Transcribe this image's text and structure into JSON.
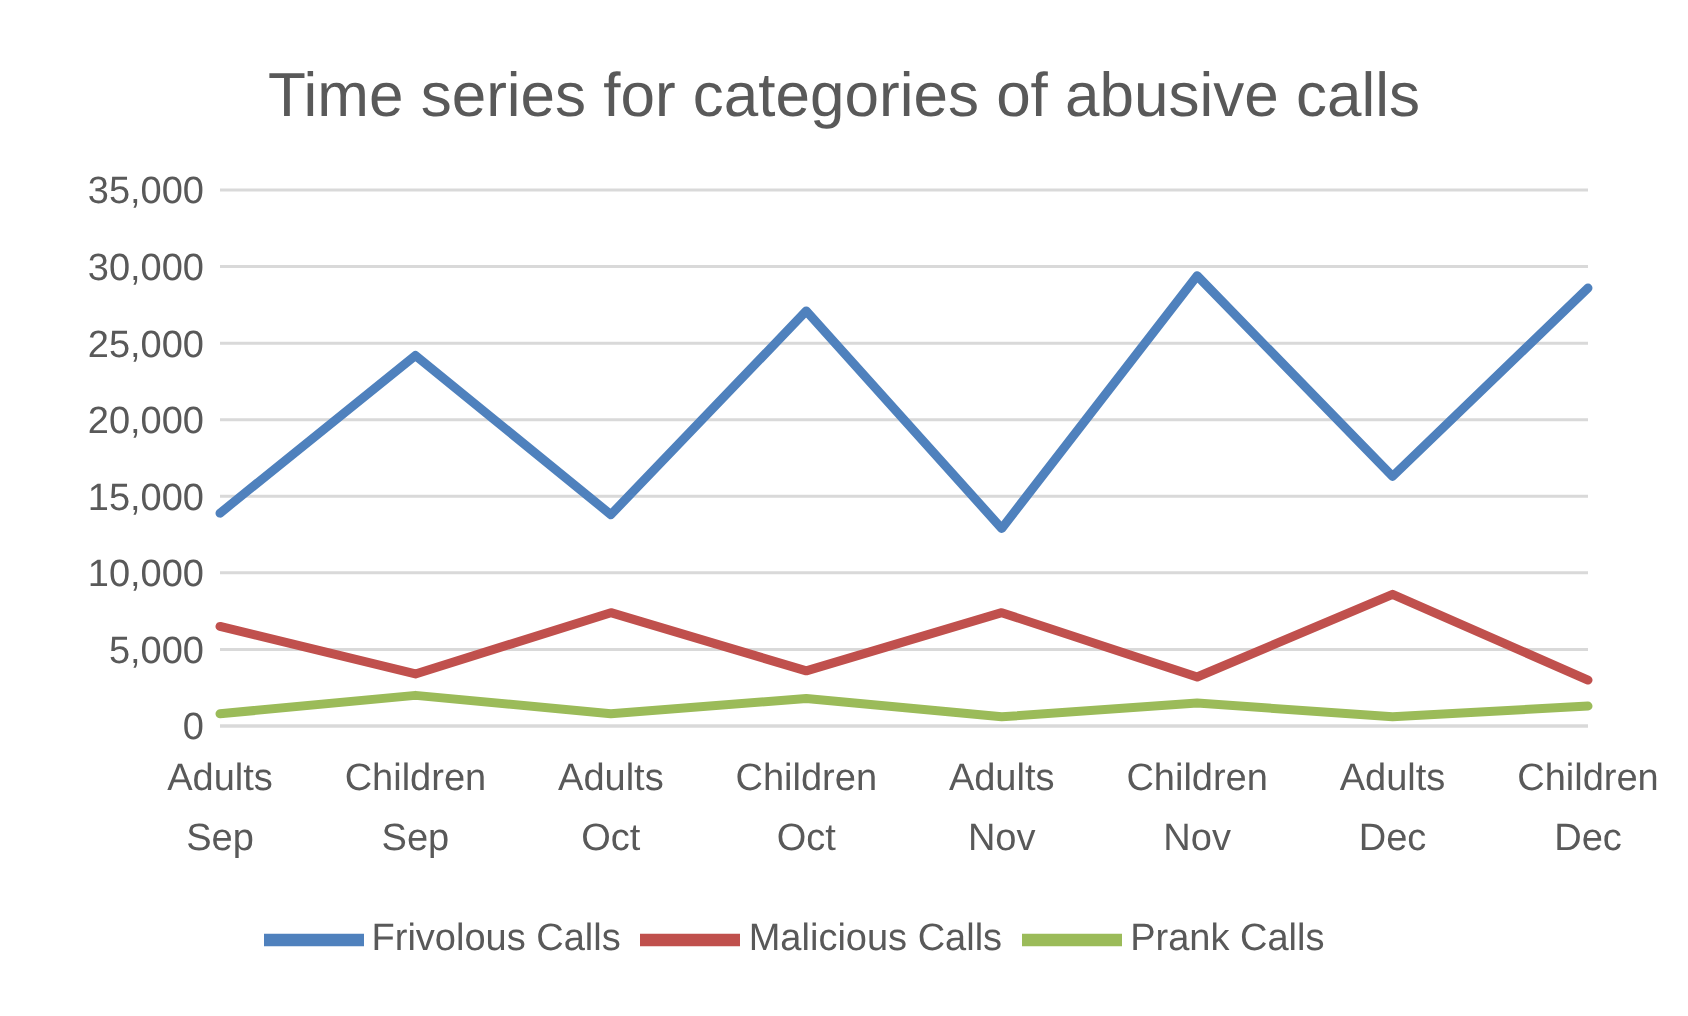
{
  "chart_data": {
    "type": "line",
    "title": "Time series for categories of abusive calls",
    "categories": [
      "Adults Sep",
      "Children Sep",
      "Adults Oct",
      "Children Oct",
      "Adults Nov",
      "Children Nov",
      "Adults Dec",
      "Children Dec"
    ],
    "series": [
      {
        "name": "Frivolous Calls",
        "color": "#4f81bd",
        "values": [
          13900,
          24200,
          13800,
          27100,
          12900,
          29400,
          16300,
          28600
        ]
      },
      {
        "name": "Malicious Calls",
        "color": "#c0504d",
        "values": [
          6500,
          3400,
          7400,
          3600,
          7400,
          3200,
          8600,
          3000
        ]
      },
      {
        "name": "Prank Calls",
        "color": "#9bbb59",
        "values": [
          800,
          2000,
          800,
          1800,
          600,
          1500,
          600,
          1300
        ]
      }
    ],
    "ylim": [
      0,
      35000
    ],
    "yticks": [
      0,
      {
        "value": 5000,
        "label": "5,000"
      },
      {
        "value": 10000,
        "label": "10,000"
      },
      {
        "value": 15000,
        "label": "15,000"
      },
      {
        "value": 20000,
        "label": "20,000"
      },
      {
        "value": 25000,
        "label": "25,000"
      },
      {
        "value": 30000,
        "label": "30,000"
      },
      {
        "value": 35000,
        "label": "35,000"
      }
    ],
    "grid": "y",
    "legend": "bottom",
    "marker": "none",
    "line_style": "solid"
  }
}
